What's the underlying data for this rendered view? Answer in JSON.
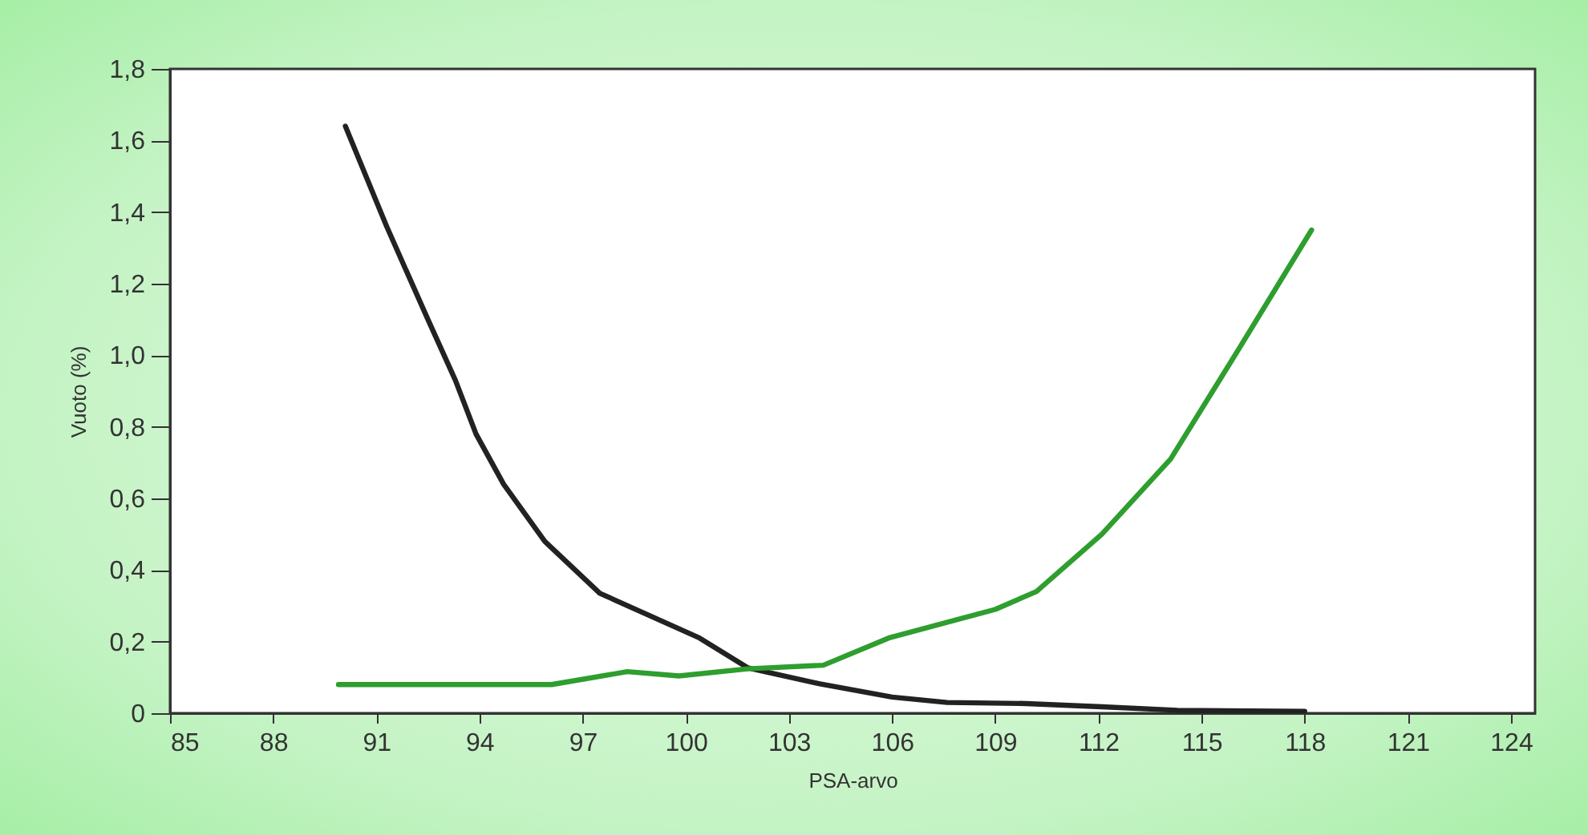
{
  "chart_data": {
    "type": "line",
    "xlabel": "PSA-arvo",
    "ylabel": "Vuoto (%)",
    "xlim": [
      85,
      124.7
    ],
    "xticks": [
      85,
      88,
      91,
      94,
      97,
      100,
      103,
      106,
      109,
      112,
      115,
      118,
      121,
      124
    ],
    "ylim": [
      0,
      1.8
    ],
    "yticks": [
      0,
      {
        "value": 0.2,
        "label": "0,2"
      },
      {
        "value": 0.4,
        "label": "0,4"
      },
      {
        "value": 0.6,
        "label": "0,6"
      },
      {
        "value": 0.8,
        "label": "0,8"
      },
      {
        "value": 1.0,
        "label": "1,0"
      },
      {
        "value": 1.2,
        "label": "1,2"
      },
      {
        "value": 1.4,
        "label": "1,4"
      },
      {
        "value": 1.6,
        "label": "1,6"
      },
      {
        "value": 1.8,
        "label": "1,8"
      }
    ],
    "grid": false,
    "legend": false,
    "marker": "none",
    "line_style": "solid",
    "series": [
      {
        "color": "#222222",
        "x": [
          90.1,
          91.3,
          92.5,
          93.3,
          93.9,
          94.7,
          95.9,
          97.5,
          100.4,
          101.8,
          103.9,
          106,
          107.6,
          109.9,
          112.1,
          114.3,
          118
        ],
        "values": [
          1.64,
          1.36,
          1.1,
          0.93,
          0.78,
          0.64,
          0.48,
          0.335,
          0.21,
          0.127,
          0.082,
          0.045,
          0.03,
          0.027,
          0.018,
          0.008,
          0.005
        ]
      },
      {
        "color": "#2e9e2e",
        "x": [
          89.9,
          96.1,
          98.3,
          99.8,
          101.8,
          104,
          105.9,
          109,
          110.2,
          112.1,
          114.1,
          116.1,
          118.2
        ],
        "values": [
          0.08,
          0.08,
          0.116,
          0.104,
          0.124,
          0.134,
          0.21,
          0.29,
          0.34,
          0.5,
          0.71,
          1.02,
          1.35
        ]
      }
    ]
  }
}
